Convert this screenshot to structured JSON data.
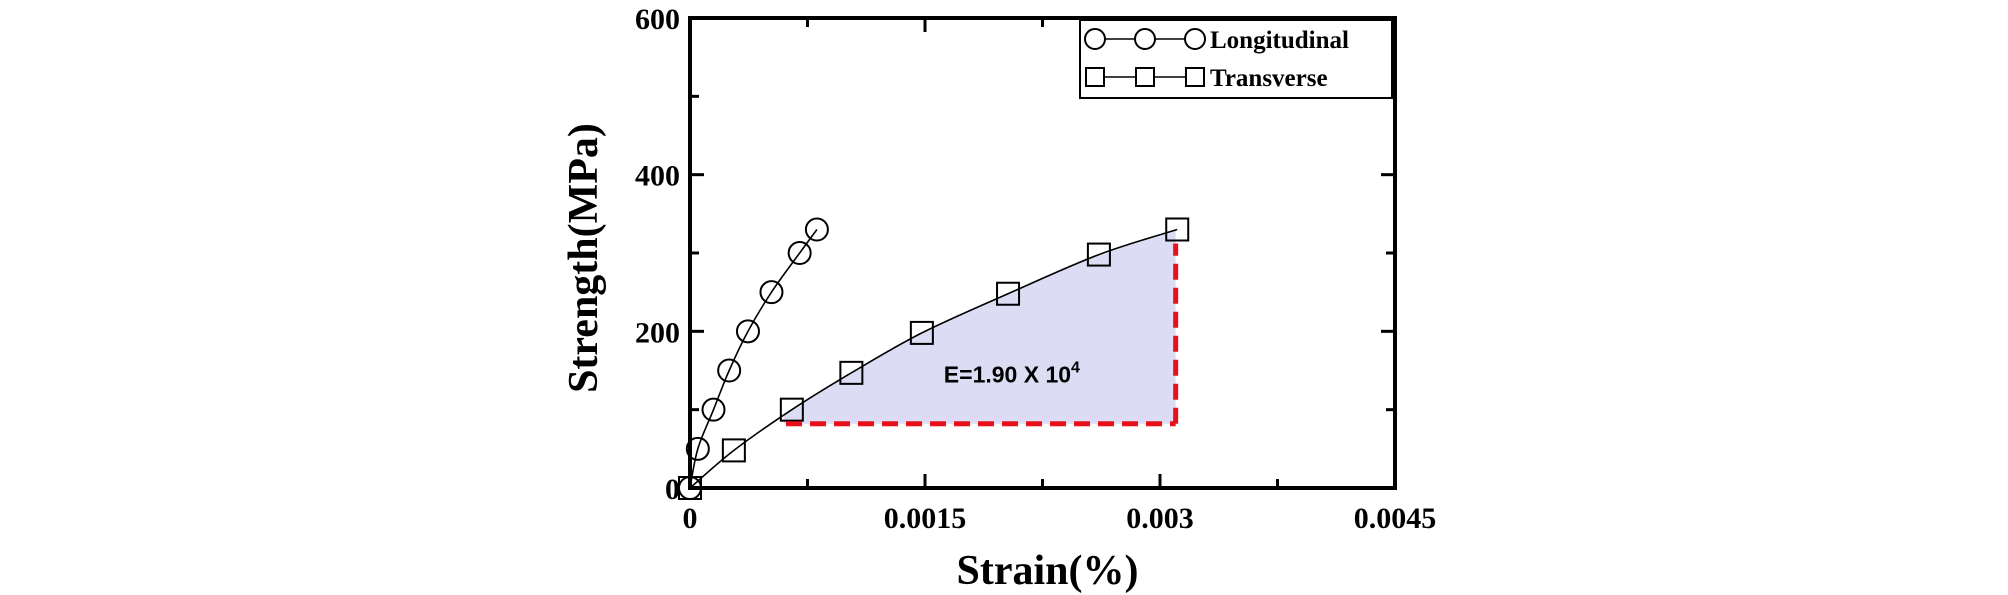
{
  "chart_data": {
    "type": "scatter",
    "xlabel": "Strain(%)",
    "ylabel": "Strength(MPa)",
    "xlim": [
      0,
      0.0045
    ],
    "ylim": [
      0,
      600
    ],
    "x_ticks": [
      0,
      0.0015,
      0.003,
      0.0045
    ],
    "x_tick_labels": [
      "0",
      "0.0015",
      "0.003",
      "0.0045"
    ],
    "y_ticks": [
      0,
      200,
      400,
      600
    ],
    "y_tick_labels": [
      "0",
      "200",
      "400",
      "600"
    ],
    "legend_position": "top-right",
    "series": [
      {
        "name": "Longitudinal",
        "marker": "circle",
        "points": [
          {
            "x": 0.0,
            "y": 0
          },
          {
            "x": 5e-05,
            "y": 50
          },
          {
            "x": 0.00015,
            "y": 100
          },
          {
            "x": 0.00025,
            "y": 150
          },
          {
            "x": 0.00037,
            "y": 200
          },
          {
            "x": 0.00052,
            "y": 250
          },
          {
            "x": 0.0007,
            "y": 300
          },
          {
            "x": 0.00081,
            "y": 330
          }
        ]
      },
      {
        "name": "Transverse",
        "marker": "square",
        "points": [
          {
            "x": 0.0,
            "y": 0
          },
          {
            "x": 0.00028,
            "y": 48
          },
          {
            "x": 0.00065,
            "y": 100
          },
          {
            "x": 0.00103,
            "y": 147
          },
          {
            "x": 0.00148,
            "y": 198
          },
          {
            "x": 0.00203,
            "y": 248
          },
          {
            "x": 0.00261,
            "y": 298
          },
          {
            "x": 0.00311,
            "y": 330
          }
        ]
      }
    ],
    "annotation": {
      "text": "E=1.90 X 10",
      "superscript": "4",
      "shaded_region_color": "#dcdcf5",
      "dashed_line_color": "#e8101a",
      "region_x": [
        0.0006,
        0.0031
      ],
      "region_y_base": 82,
      "region_y_top": 330
    }
  }
}
